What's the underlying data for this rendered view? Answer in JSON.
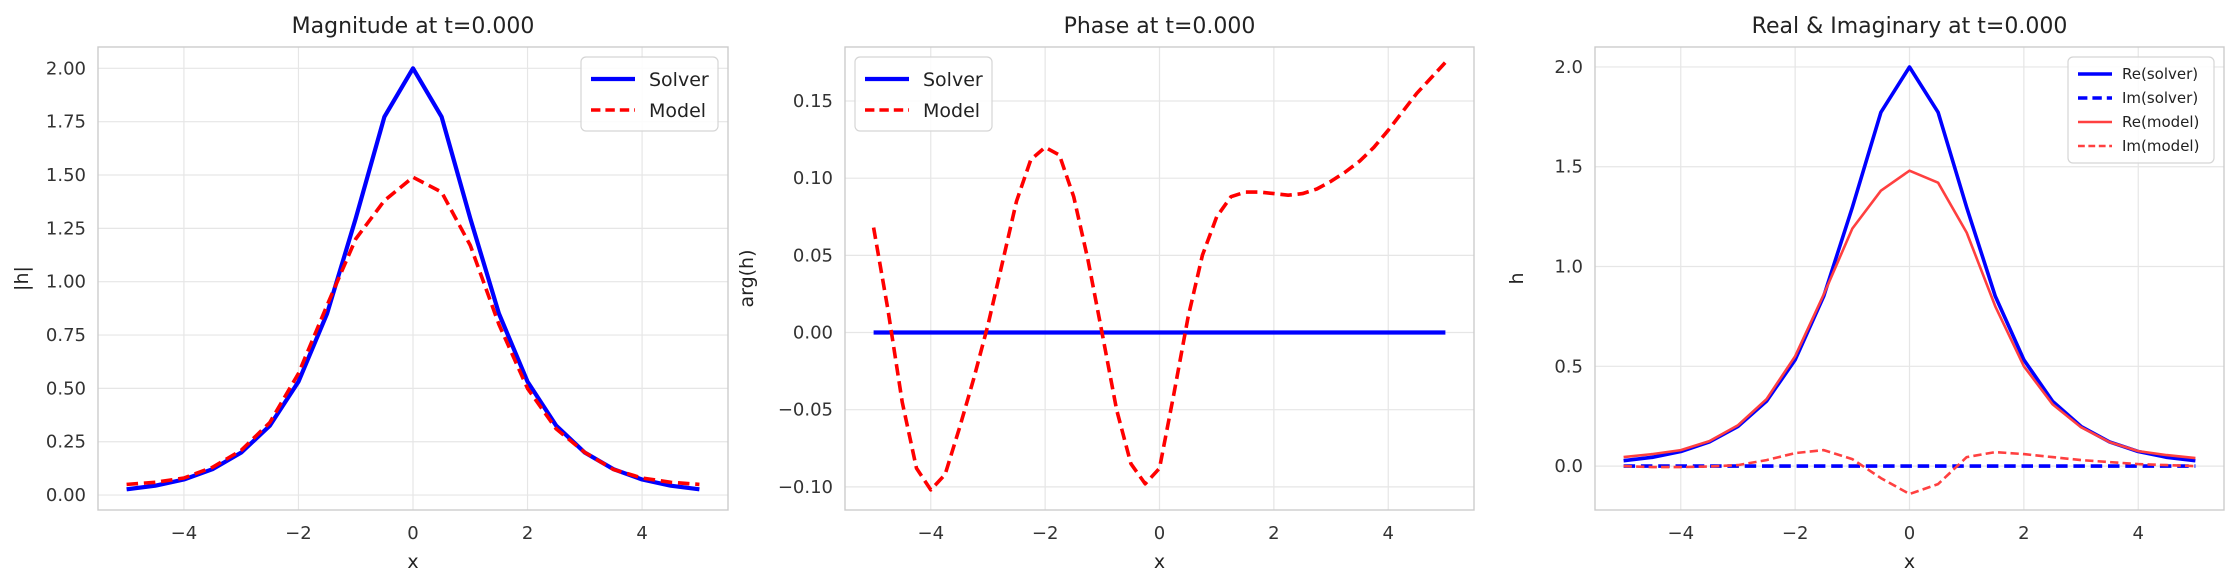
{
  "figure": {
    "background": "#ffffff"
  },
  "chart_data": [
    {
      "type": "line",
      "title": "Magnitude at t=0.000",
      "xlabel": "x",
      "ylabel": "|h|",
      "xlim": [
        -5.5,
        5.5
      ],
      "ylim": [
        -0.07,
        2.1
      ],
      "xticks": [
        -4,
        -2,
        0,
        2,
        4
      ],
      "yticks": [
        0.0,
        0.25,
        0.5,
        0.75,
        1.0,
        1.25,
        1.5,
        1.75,
        2.0
      ],
      "ytick_labels": [
        "0.00",
        "0.25",
        "0.50",
        "0.75",
        "1.00",
        "1.25",
        "1.50",
        "1.75",
        "2.00"
      ],
      "grid": true,
      "legend": {
        "position": "top-right",
        "small": false
      },
      "series": [
        {
          "name": "Solver",
          "color": "#0000ff",
          "dash": "solid",
          "width": 4.2,
          "x": [
            -5,
            -4.5,
            -4,
            -3.5,
            -3,
            -2.5,
            -2,
            -1.5,
            -1,
            -0.5,
            0,
            0.5,
            1,
            1.5,
            2,
            2.5,
            3,
            3.5,
            4,
            4.5,
            5
          ],
          "y": [
            0.027,
            0.044,
            0.073,
            0.121,
            0.199,
            0.325,
            0.532,
            0.851,
            1.296,
            1.773,
            2.0,
            1.773,
            1.296,
            0.851,
            0.532,
            0.325,
            0.199,
            0.121,
            0.073,
            0.044,
            0.027
          ]
        },
        {
          "name": "Model",
          "color": "#ff0000",
          "dash": "dashed",
          "width": 3.6,
          "x": [
            -5,
            -4.5,
            -4,
            -3.5,
            -3,
            -2.5,
            -2,
            -1.5,
            -1,
            -0.5,
            0,
            0.5,
            1,
            1.5,
            2,
            2.5,
            3,
            3.5,
            4,
            4.5,
            5
          ],
          "y": [
            0.05,
            0.06,
            0.08,
            0.13,
            0.21,
            0.34,
            0.57,
            0.89,
            1.2,
            1.38,
            1.49,
            1.42,
            1.17,
            0.8,
            0.5,
            0.31,
            0.2,
            0.12,
            0.08,
            0.06,
            0.05
          ]
        }
      ]
    },
    {
      "type": "line",
      "title": "Phase at t=0.000",
      "xlabel": "x",
      "ylabel": "arg(h)",
      "xlim": [
        -5.5,
        5.5
      ],
      "ylim": [
        -0.115,
        0.185
      ],
      "xticks": [
        -4,
        -2,
        0,
        2,
        4
      ],
      "yticks": [
        -0.1,
        -0.05,
        0.0,
        0.05,
        0.1,
        0.15
      ],
      "ytick_labels": [
        "−0.10",
        "−0.05",
        "0.00",
        "0.05",
        "0.10",
        "0.15"
      ],
      "grid": true,
      "legend": {
        "position": "top-left",
        "small": false
      },
      "series": [
        {
          "name": "Solver",
          "color": "#0000ff",
          "dash": "solid",
          "width": 4.2,
          "x": [
            -5,
            5
          ],
          "y": [
            0,
            0
          ]
        },
        {
          "name": "Model",
          "color": "#ff0000",
          "dash": "dashed",
          "width": 3.6,
          "x": [
            -5,
            -4.75,
            -4.5,
            -4.25,
            -4,
            -3.75,
            -3.5,
            -3.25,
            -3,
            -2.75,
            -2.5,
            -2.25,
            -2,
            -1.75,
            -1.5,
            -1.25,
            -1,
            -0.75,
            -0.5,
            -0.25,
            0,
            0.25,
            0.5,
            0.75,
            1,
            1.25,
            1.5,
            1.75,
            2,
            2.25,
            2.5,
            2.75,
            3,
            3.25,
            3.5,
            3.75,
            4,
            4.25,
            4.5,
            4.75,
            5
          ],
          "y": [
            0.068,
            0.015,
            -0.045,
            -0.088,
            -0.102,
            -0.092,
            -0.062,
            -0.03,
            0.005,
            0.045,
            0.085,
            0.112,
            0.12,
            0.115,
            0.088,
            0.047,
            -0.001,
            -0.05,
            -0.085,
            -0.098,
            -0.088,
            -0.04,
            0.01,
            0.05,
            0.075,
            0.088,
            0.091,
            0.091,
            0.09,
            0.089,
            0.09,
            0.093,
            0.098,
            0.104,
            0.111,
            0.12,
            0.131,
            0.143,
            0.155,
            0.165,
            0.175
          ]
        }
      ]
    },
    {
      "type": "line",
      "title": "Real & Imaginary at t=0.000",
      "xlabel": "x",
      "ylabel": "h",
      "xlim": [
        -5.5,
        5.5
      ],
      "ylim": [
        -0.22,
        2.1
      ],
      "xticks": [
        -4,
        -2,
        0,
        2,
        4
      ],
      "yticks": [
        0.0,
        0.5,
        1.0,
        1.5,
        2.0
      ],
      "ytick_labels": [
        "0.0",
        "0.5",
        "1.0",
        "1.5",
        "2.0"
      ],
      "grid": true,
      "legend": {
        "position": "top-right",
        "small": true
      },
      "series": [
        {
          "name": "Re(solver)",
          "color": "#0000ff",
          "dash": "solid",
          "width": 3.6,
          "x": [
            -5,
            -4.5,
            -4,
            -3.5,
            -3,
            -2.5,
            -2,
            -1.5,
            -1,
            -0.5,
            0,
            0.5,
            1,
            1.5,
            2,
            2.5,
            3,
            3.5,
            4,
            4.5,
            5
          ],
          "y": [
            0.027,
            0.044,
            0.073,
            0.121,
            0.199,
            0.325,
            0.532,
            0.851,
            1.296,
            1.773,
            2.0,
            1.773,
            1.296,
            0.851,
            0.532,
            0.325,
            0.199,
            0.121,
            0.073,
            0.044,
            0.027
          ]
        },
        {
          "name": "Im(solver)",
          "color": "#0000ff",
          "dash": "dashed",
          "width": 3.6,
          "x": [
            -5,
            5
          ],
          "y": [
            0,
            0
          ]
        },
        {
          "name": "Re(model)",
          "color": "#ff4040",
          "dash": "solid",
          "width": 2.6,
          "x": [
            -5,
            -4.5,
            -4,
            -3.5,
            -3,
            -2.5,
            -2,
            -1.5,
            -1,
            -0.5,
            0,
            0.5,
            1,
            1.5,
            2,
            2.5,
            3,
            3.5,
            4,
            4.5,
            5
          ],
          "y": [
            0.045,
            0.06,
            0.08,
            0.125,
            0.205,
            0.335,
            0.55,
            0.86,
            1.19,
            1.38,
            1.48,
            1.42,
            1.17,
            0.8,
            0.5,
            0.31,
            0.195,
            0.12,
            0.075,
            0.055,
            0.04
          ]
        },
        {
          "name": "Im(model)",
          "color": "#ff4040",
          "dash": "dashed",
          "width": 2.6,
          "x": [
            -5,
            -4.5,
            -4,
            -3.5,
            -3,
            -2.5,
            -2,
            -1.5,
            -1,
            -0.5,
            0,
            0.5,
            1,
            1.5,
            2,
            2.5,
            3,
            3.5,
            4,
            4.5,
            5
          ],
          "y": [
            0.0,
            -0.005,
            -0.005,
            -0.002,
            0.005,
            0.03,
            0.065,
            0.08,
            0.035,
            -0.06,
            -0.14,
            -0.09,
            0.045,
            0.07,
            0.06,
            0.045,
            0.03,
            0.02,
            0.01,
            0.005,
            0.0
          ]
        }
      ]
    }
  ]
}
